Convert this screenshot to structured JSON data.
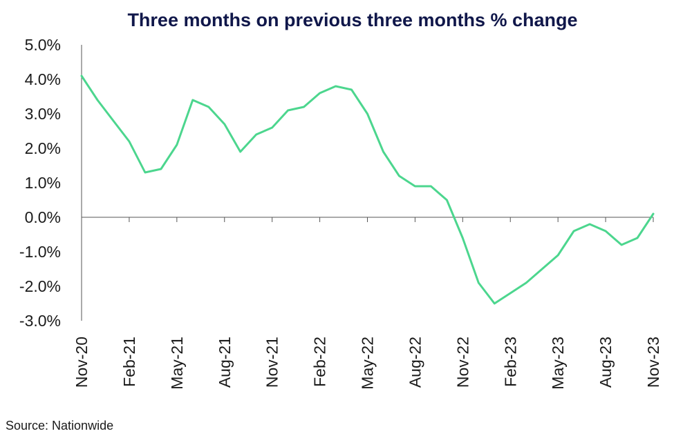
{
  "chart_data": {
    "type": "line",
    "title": "Three months on previous three months % change",
    "xlabel": "",
    "ylabel": "",
    "ylim": [
      -3.0,
      5.0
    ],
    "yticks": [
      "5.0%",
      "4.0%",
      "3.0%",
      "2.0%",
      "1.0%",
      "0.0%",
      "-1.0%",
      "-2.0%",
      "-3.0%"
    ],
    "ytick_values": [
      5,
      4,
      3,
      2,
      1,
      0,
      -1,
      -2,
      -3
    ],
    "x_tick_labels": [
      "Nov-20",
      "Feb-21",
      "May-21",
      "Aug-21",
      "Nov-21",
      "Feb-22",
      "May-22",
      "Aug-22",
      "Nov-22",
      "Feb-23",
      "May-23",
      "Aug-23",
      "Nov-23"
    ],
    "x": [
      "Nov-20",
      "Dec-20",
      "Jan-21",
      "Feb-21",
      "Mar-21",
      "Apr-21",
      "May-21",
      "Jun-21",
      "Jul-21",
      "Aug-21",
      "Sep-21",
      "Oct-21",
      "Nov-21",
      "Dec-21",
      "Jan-22",
      "Feb-22",
      "Mar-22",
      "Apr-22",
      "May-22",
      "Jun-22",
      "Jul-22",
      "Aug-22",
      "Sep-22",
      "Oct-22",
      "Nov-22",
      "Dec-22",
      "Jan-23",
      "Feb-23",
      "Mar-23",
      "Apr-23",
      "May-23",
      "Jun-23",
      "Jul-23",
      "Aug-23",
      "Sep-23",
      "Oct-23",
      "Nov-23"
    ],
    "series": [
      {
        "values": [
          4.1,
          3.4,
          2.8,
          2.2,
          1.3,
          1.4,
          2.1,
          3.4,
          3.2,
          2.7,
          1.9,
          2.4,
          2.6,
          3.1,
          3.2,
          3.6,
          3.8,
          3.7,
          3.0,
          1.9,
          1.2,
          0.9,
          0.9,
          0.5,
          -0.6,
          -1.9,
          -2.5,
          -2.2,
          -1.9,
          -1.5,
          -1.1,
          -0.4,
          -0.2,
          -0.4,
          -0.8,
          -0.6,
          0.1
        ],
        "color": "#4cd68e"
      }
    ],
    "grid": false,
    "source": "Source: Nationwide"
  }
}
